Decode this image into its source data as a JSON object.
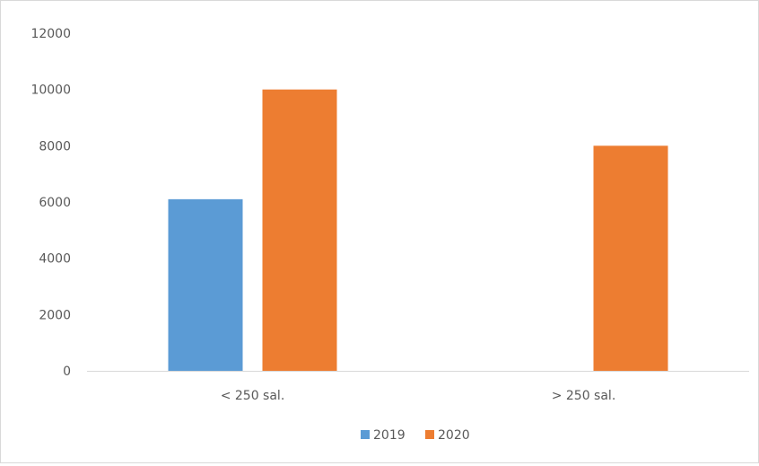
{
  "chart_data": {
    "type": "bar",
    "title": "",
    "xlabel": "",
    "ylabel": "",
    "categories": [
      "< 250 sal.",
      "> 250 sal."
    ],
    "series": [
      {
        "name": "2019",
        "values": [
          6100,
          0
        ],
        "color": "#5b9bd5"
      },
      {
        "name": "2020",
        "values": [
          10000,
          8000
        ],
        "color": "#ed7d31"
      }
    ],
    "ylim": [
      0,
      12000
    ],
    "yticks": [
      0,
      2000,
      4000,
      6000,
      8000,
      10000,
      12000
    ],
    "grid": false,
    "legend_position": "bottom"
  }
}
